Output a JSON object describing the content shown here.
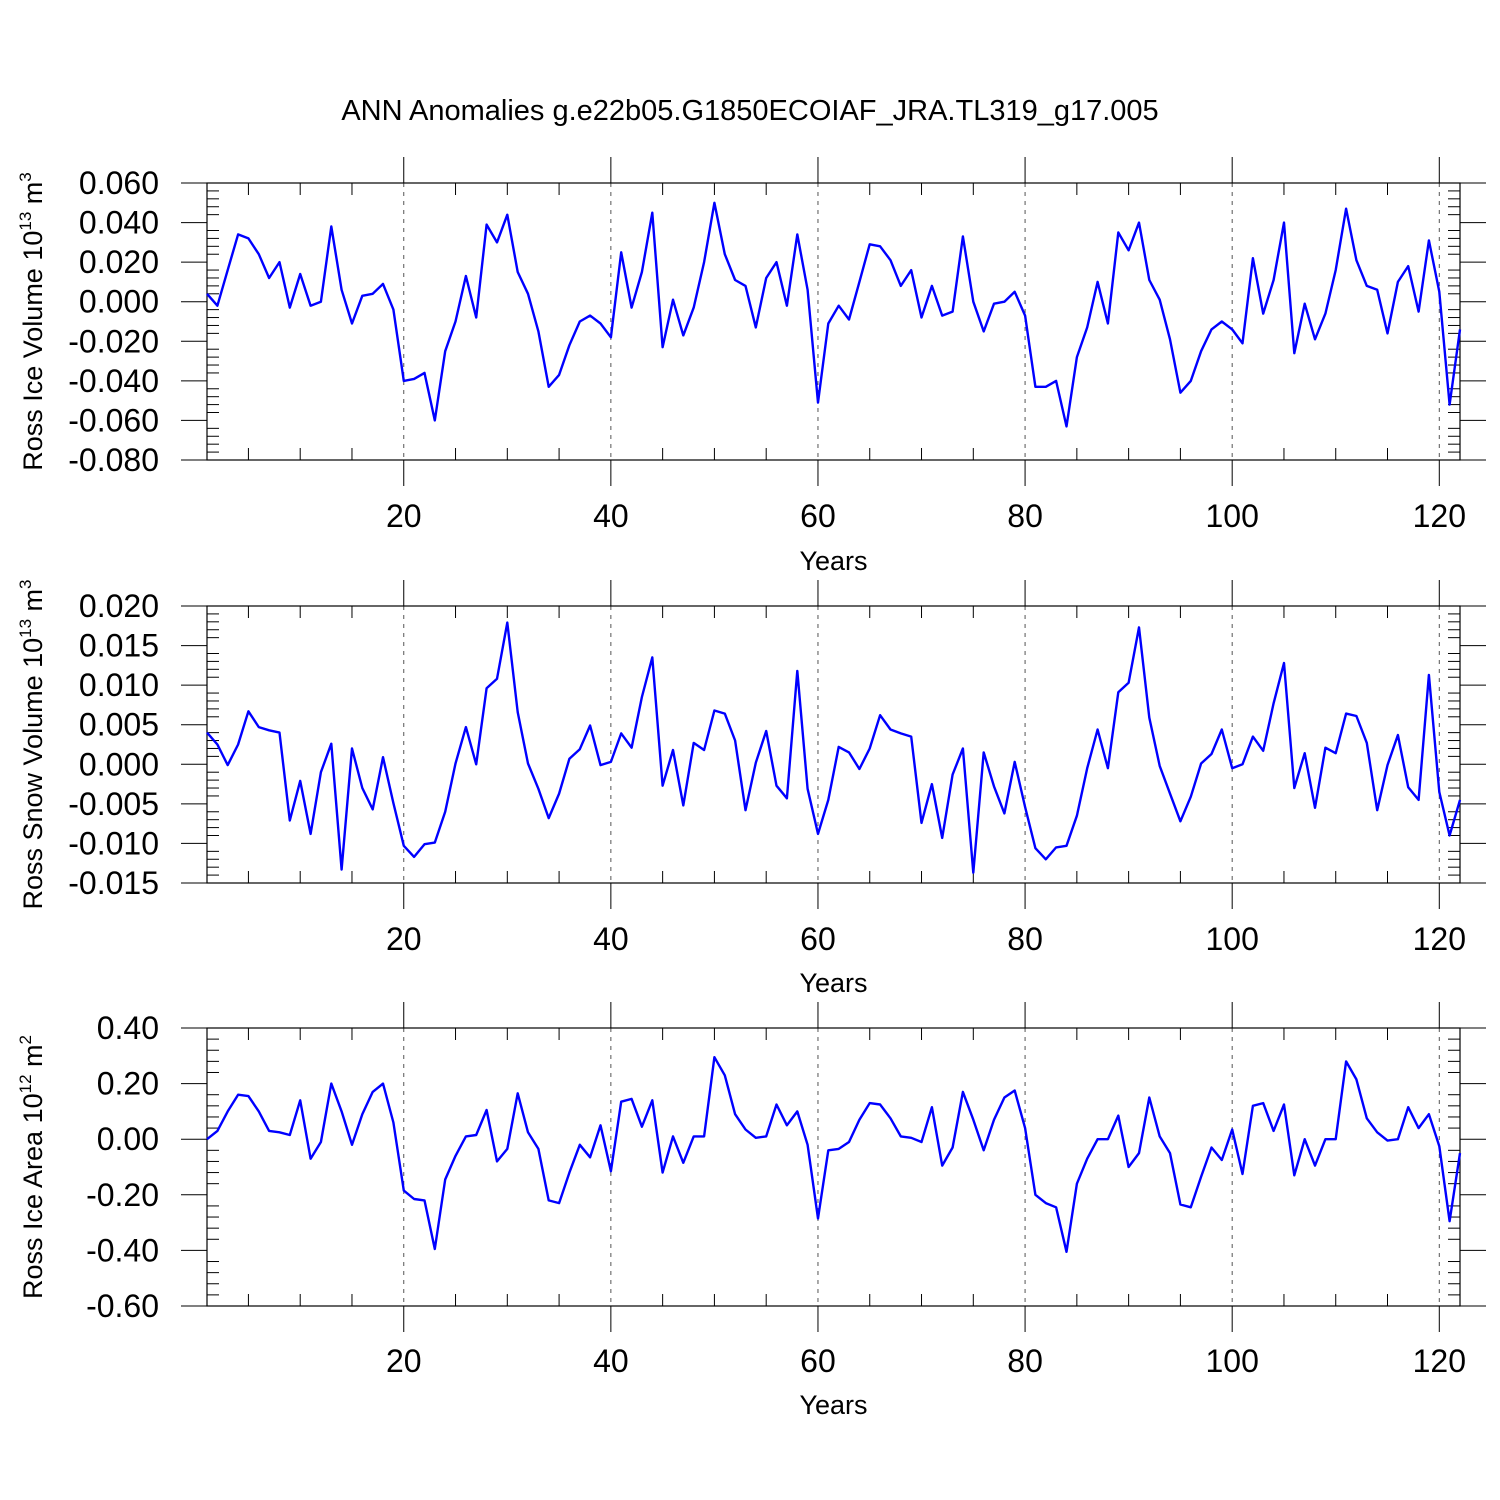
{
  "title": "ANN Anomalies g.e22b05.G1850ECOIAF_JRA.TL319_g17.005",
  "colors": {
    "series": "#0000ff",
    "grid": "#555555",
    "axis": "#000000",
    "background": "#ffffff"
  },
  "chart_data": [
    {
      "type": "line",
      "ylabel": "Ross Ice Volume 10",
      "ylabel_exp": "13",
      "ylabel_unit": " m",
      "ylabel_unit_exp": "3",
      "xlabel": "Years",
      "xlim": [
        1,
        122
      ],
      "ylim": [
        -0.08,
        0.06
      ],
      "xticks": [
        20,
        40,
        60,
        80,
        100,
        120
      ],
      "xtick_labels": [
        "20",
        "40",
        "60",
        "80",
        "100",
        "120"
      ],
      "yticks": [
        -0.08,
        -0.06,
        -0.04,
        -0.02,
        0.0,
        0.02,
        0.04,
        0.06
      ],
      "ytick_labels": [
        "-0.080",
        "-0.060",
        "-0.040",
        "-0.020",
        "0.000",
        "0.020",
        "0.040",
        "0.060"
      ],
      "grid": "vertical dashed at major x ticks",
      "x_start": 1,
      "values": [
        0.004,
        -0.002,
        0.016,
        0.034,
        0.032,
        0.024,
        0.012,
        0.02,
        -0.003,
        0.014,
        -0.002,
        0.0,
        0.038,
        0.006,
        -0.011,
        0.003,
        0.004,
        0.009,
        -0.004,
        -0.04,
        -0.039,
        -0.036,
        -0.06,
        -0.025,
        -0.01,
        0.013,
        -0.008,
        0.039,
        0.03,
        0.044,
        0.015,
        0.004,
        -0.015,
        -0.043,
        -0.037,
        -0.022,
        -0.01,
        -0.007,
        -0.011,
        -0.018,
        0.025,
        -0.003,
        0.015,
        0.045,
        -0.023,
        0.001,
        -0.017,
        -0.003,
        0.02,
        0.05,
        0.024,
        0.011,
        0.008,
        -0.013,
        0.012,
        0.02,
        -0.002,
        0.034,
        0.006,
        -0.051,
        -0.011,
        -0.002,
        -0.009,
        0.01,
        0.029,
        0.028,
        0.021,
        0.008,
        0.016,
        -0.008,
        0.008,
        -0.007,
        -0.005,
        0.033,
        0.0,
        -0.015,
        -0.001,
        0.0,
        0.005,
        -0.007,
        -0.043,
        -0.043,
        -0.04,
        -0.063,
        -0.028,
        -0.013,
        0.01,
        -0.011,
        0.035,
        0.026,
        0.04,
        0.011,
        0.001,
        -0.019,
        -0.046,
        -0.04,
        -0.025,
        -0.014,
        -0.01,
        -0.014,
        -0.021,
        0.022,
        -0.006,
        0.011,
        0.04,
        -0.026,
        -0.001,
        -0.019,
        -0.006,
        0.016,
        0.047,
        0.021,
        0.008,
        0.006,
        -0.016,
        0.01,
        0.018,
        -0.005,
        0.031,
        0.005,
        -0.052,
        -0.014
      ]
    },
    {
      "type": "line",
      "ylabel": "Ross Snow Volume 10",
      "ylabel_exp": "13",
      "ylabel_unit": " m",
      "ylabel_unit_exp": "3",
      "xlabel": "Years",
      "xlim": [
        1,
        122
      ],
      "ylim": [
        -0.015,
        0.02
      ],
      "xticks": [
        20,
        40,
        60,
        80,
        100,
        120
      ],
      "xtick_labels": [
        "20",
        "40",
        "60",
        "80",
        "100",
        "120"
      ],
      "yticks": [
        -0.015,
        -0.01,
        -0.005,
        0.0,
        0.005,
        0.01,
        0.015,
        0.02
      ],
      "ytick_labels": [
        "-0.015",
        "-0.010",
        "-0.005",
        "0.000",
        "0.005",
        "0.010",
        "0.015",
        "0.020"
      ],
      "grid": "vertical dashed at major x ticks",
      "x_start": 1,
      "values": [
        0.004,
        0.0025,
        -0.0001,
        0.0025,
        0.0067,
        0.0047,
        0.0043,
        0.004,
        -0.0071,
        -0.0021,
        -0.0088,
        -0.001,
        0.0026,
        -0.0133,
        0.002,
        -0.003,
        -0.0057,
        0.0009,
        -0.0049,
        -0.0103,
        -0.0117,
        -0.0101,
        -0.0099,
        -0.006,
        0.0001,
        0.0047,
        0.0,
        0.0096,
        0.0108,
        0.0179,
        0.0066,
        0.0001,
        -0.0031,
        -0.0068,
        -0.0037,
        0.0007,
        0.0019,
        0.0049,
        -0.0001,
        0.0003,
        0.0039,
        0.0021,
        0.0085,
        0.0135,
        -0.0027,
        0.0018,
        -0.0052,
        0.0027,
        0.0018,
        0.0068,
        0.0064,
        0.003,
        -0.0058,
        0.0002,
        0.0042,
        -0.0027,
        -0.0043,
        0.0118,
        -0.0031,
        -0.0088,
        -0.0045,
        0.0022,
        0.0015,
        -0.0006,
        0.002,
        0.0062,
        0.0044,
        0.0039,
        0.0035,
        -0.0074,
        -0.0025,
        -0.0093,
        -0.0013,
        0.002,
        -0.0137,
        0.0015,
        -0.0028,
        -0.0062,
        0.0003,
        -0.0054,
        -0.0106,
        -0.012,
        -0.0105,
        -0.0103,
        -0.0065,
        -0.0005,
        0.0044,
        -0.0005,
        0.0091,
        0.0103,
        0.0173,
        0.0059,
        -0.0002,
        -0.0037,
        -0.0072,
        -0.0041,
        0.0001,
        0.0013,
        0.0044,
        -0.0005,
        0.0,
        0.0035,
        0.0017,
        0.0077,
        0.0128,
        -0.003,
        0.0014,
        -0.0055,
        0.0021,
        0.0014,
        0.0064,
        0.0061,
        0.0027,
        -0.0058,
        -0.0001,
        0.0037,
        -0.0029,
        -0.0045,
        0.0113,
        -0.0035,
        -0.009,
        -0.0045
      ]
    },
    {
      "type": "line",
      "ylabel": "Ross Ice Area 10",
      "ylabel_exp": "12",
      "ylabel_unit": " m",
      "ylabel_unit_exp": "2",
      "xlabel": "Years",
      "xlim": [
        1,
        122
      ],
      "ylim": [
        -0.6,
        0.4
      ],
      "xticks": [
        20,
        40,
        60,
        80,
        100,
        120
      ],
      "xtick_labels": [
        "20",
        "40",
        "60",
        "80",
        "100",
        "120"
      ],
      "yticks": [
        -0.6,
        -0.4,
        -0.2,
        0.0,
        0.2,
        0.4
      ],
      "ytick_labels": [
        "-0.60",
        "-0.40",
        "-0.20",
        "0.00",
        "0.20",
        "0.40"
      ],
      "grid": "vertical dashed at major x ticks",
      "x_start": 1,
      "values": [
        0.0,
        0.03,
        0.1,
        0.16,
        0.155,
        0.1,
        0.03,
        0.025,
        0.015,
        0.14,
        -0.07,
        -0.01,
        0.2,
        0.1,
        -0.02,
        0.09,
        0.17,
        0.2,
        0.06,
        -0.185,
        -0.215,
        -0.22,
        -0.395,
        -0.145,
        -0.06,
        0.01,
        0.015,
        0.105,
        -0.08,
        -0.035,
        0.165,
        0.025,
        -0.035,
        -0.22,
        -0.23,
        -0.12,
        -0.02,
        -0.065,
        0.05,
        -0.115,
        0.135,
        0.145,
        0.045,
        0.14,
        -0.12,
        0.01,
        -0.085,
        0.01,
        0.01,
        0.295,
        0.23,
        0.09,
        0.035,
        0.005,
        0.01,
        0.125,
        0.05,
        0.1,
        -0.02,
        -0.285,
        -0.04,
        -0.035,
        -0.01,
        0.07,
        0.13,
        0.125,
        0.075,
        0.01,
        0.005,
        -0.01,
        0.115,
        -0.095,
        -0.03,
        0.17,
        0.07,
        -0.04,
        0.07,
        0.15,
        0.175,
        0.04,
        -0.2,
        -0.23,
        -0.245,
        -0.405,
        -0.16,
        -0.07,
        0.0,
        0.0,
        0.085,
        -0.1,
        -0.05,
        0.15,
        0.01,
        -0.05,
        -0.235,
        -0.245,
        -0.135,
        -0.03,
        -0.075,
        0.035,
        -0.125,
        0.12,
        0.13,
        0.03,
        0.125,
        -0.13,
        0.0,
        -0.095,
        0.0,
        0.0,
        0.28,
        0.215,
        0.075,
        0.025,
        -0.005,
        0.0,
        0.115,
        0.04,
        0.09,
        -0.025,
        -0.295,
        -0.05
      ]
    }
  ]
}
